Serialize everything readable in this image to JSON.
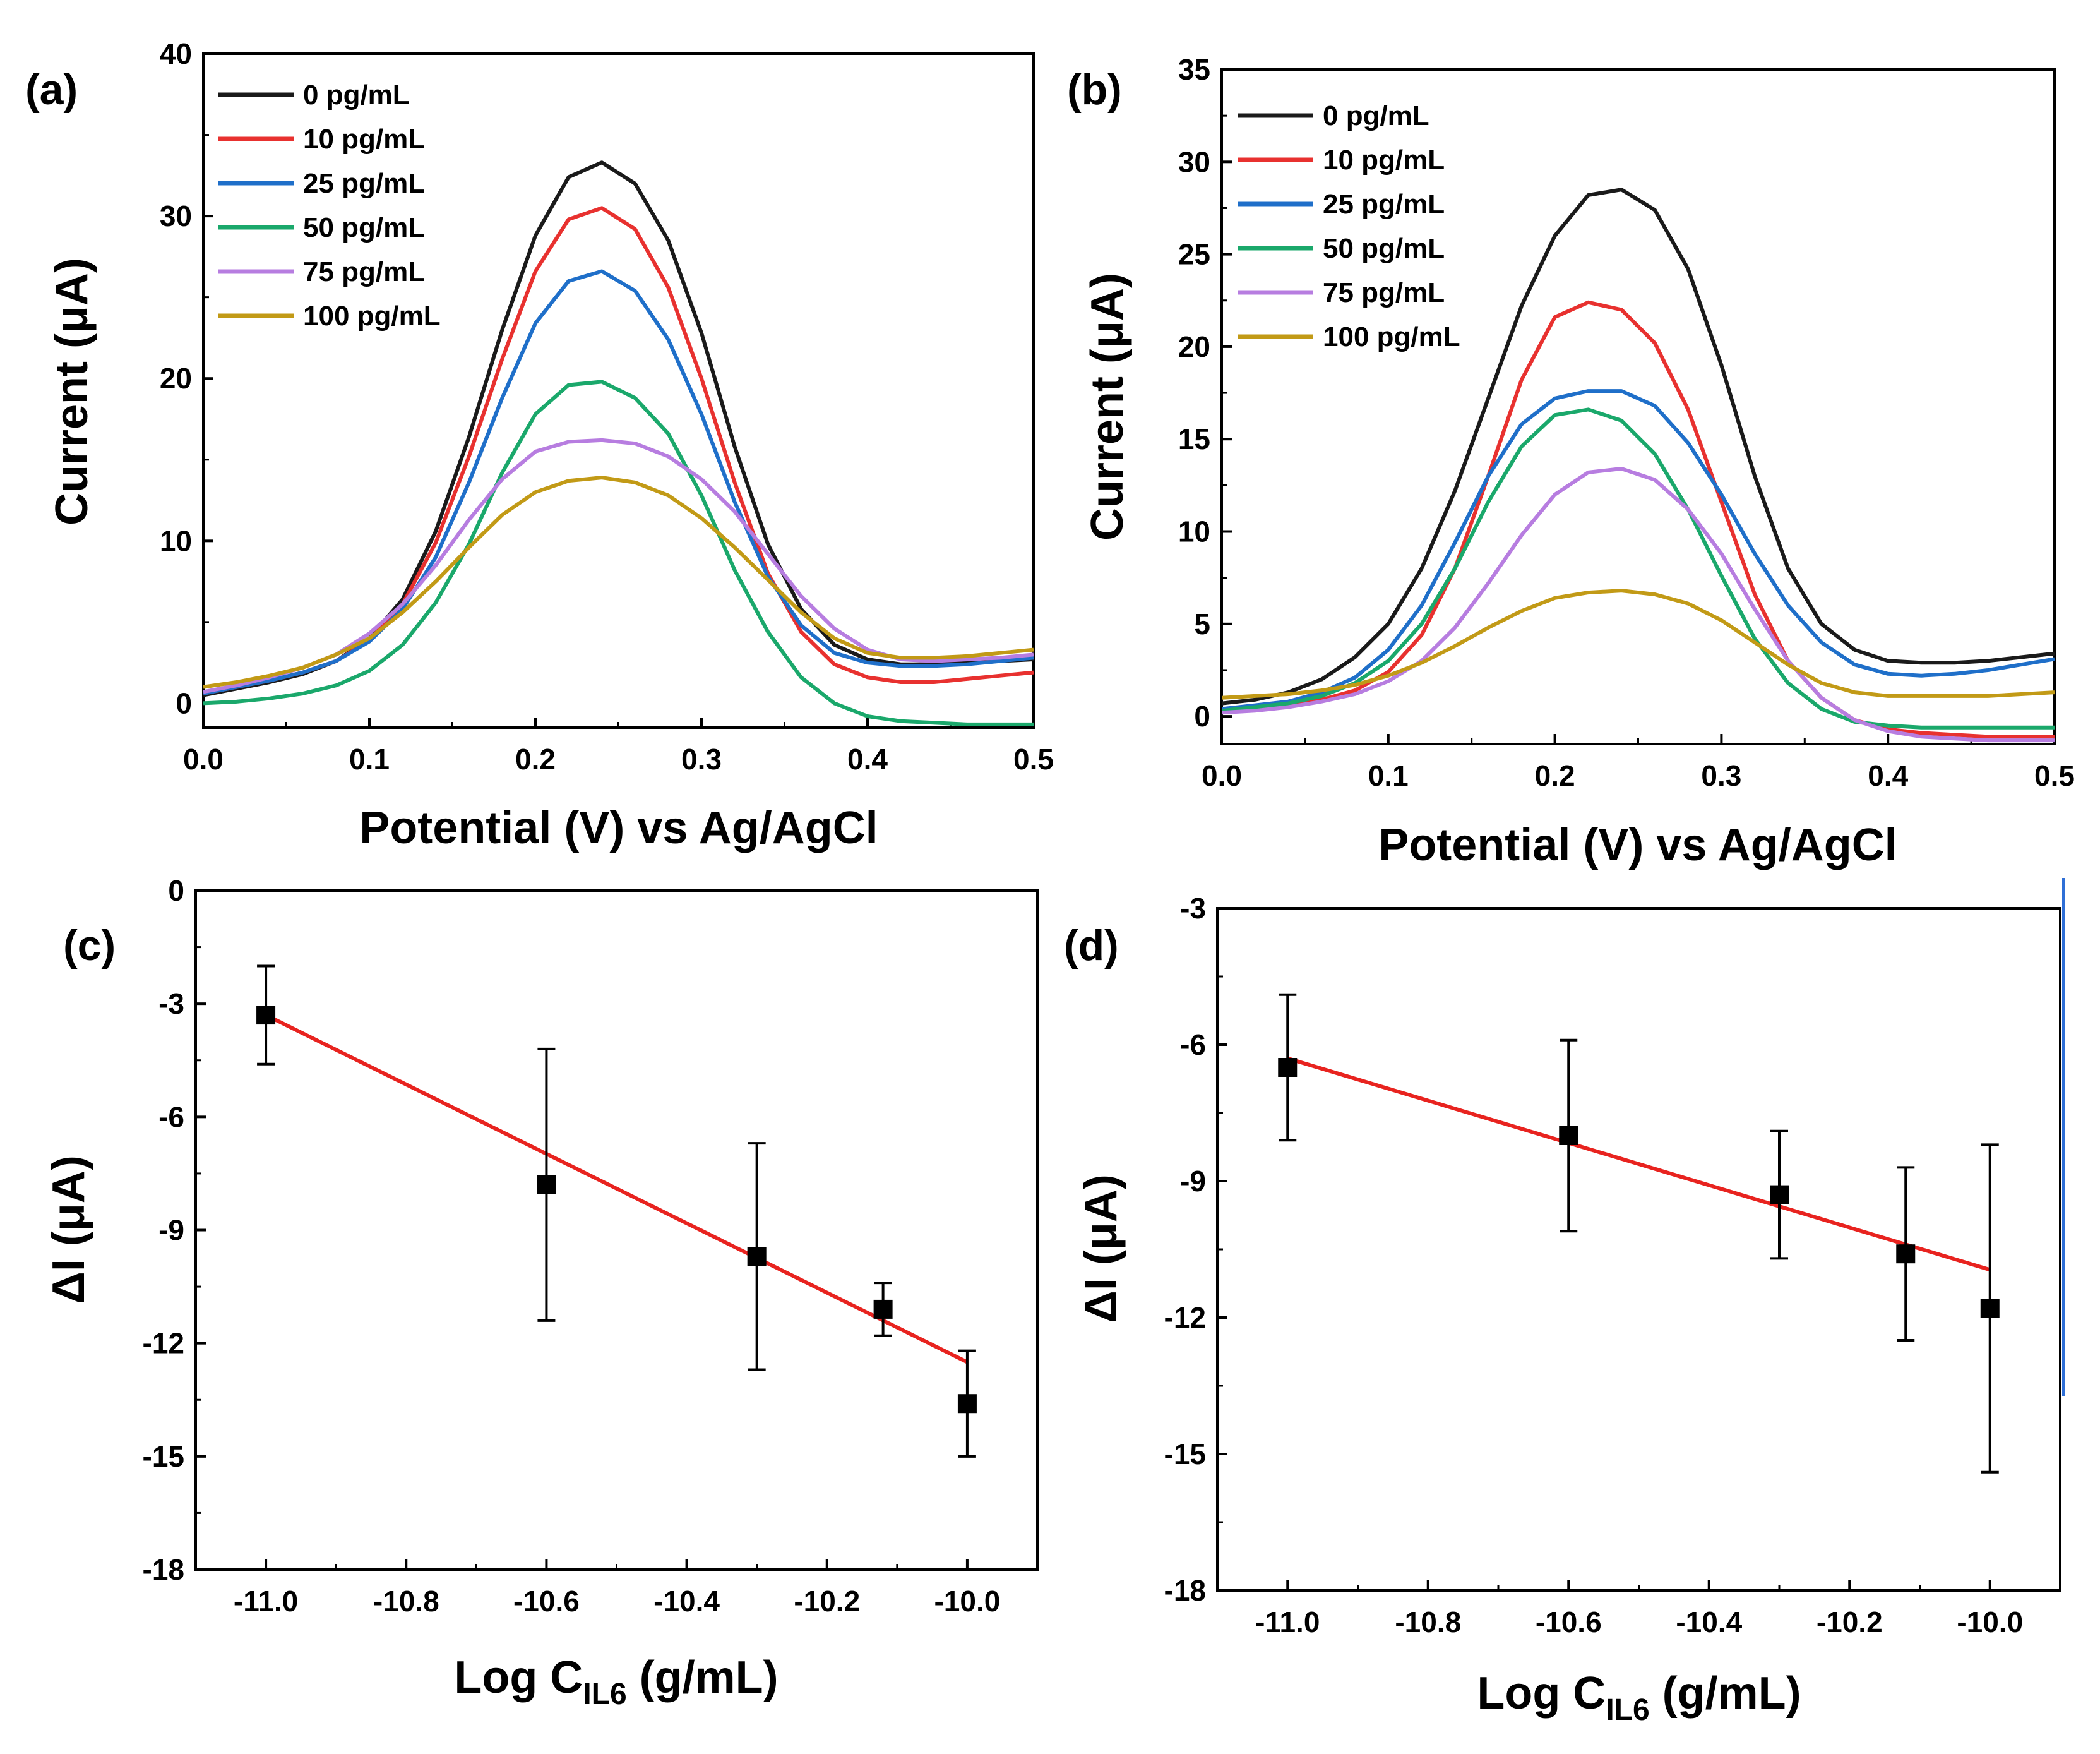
{
  "chart_data": [
    {
      "id": "a",
      "panel_label": "(a)",
      "type": "line",
      "xlabel": "Potential (V) vs Ag/AgCl",
      "ylabel": "Current (μA)",
      "xlim": [
        0.0,
        0.5
      ],
      "ylim": [
        -1.5,
        40
      ],
      "xticks": [
        0.0,
        0.1,
        0.2,
        0.3,
        0.4,
        0.5
      ],
      "yticks": [
        0,
        10,
        20,
        30,
        40
      ],
      "legend_position": "top-left",
      "series": [
        {
          "name": "0 pg/mL",
          "color": "#1a1a1a",
          "x": [
            0.0,
            0.02,
            0.04,
            0.06,
            0.08,
            0.1,
            0.12,
            0.14,
            0.16,
            0.18,
            0.2,
            0.22,
            0.24,
            0.26,
            0.28,
            0.3,
            0.32,
            0.34,
            0.36,
            0.38,
            0.4,
            0.42,
            0.44,
            0.46,
            0.48,
            0.5
          ],
          "values": [
            0.5,
            0.9,
            1.3,
            1.8,
            2.6,
            4.0,
            6.4,
            10.6,
            16.4,
            23.0,
            28.8,
            32.4,
            33.3,
            32.0,
            28.5,
            22.8,
            15.8,
            9.8,
            5.8,
            3.6,
            2.7,
            2.4,
            2.4,
            2.5,
            2.6,
            2.7
          ]
        },
        {
          "name": "10 pg/mL",
          "color": "#e8312f",
          "x": [
            0.0,
            0.02,
            0.04,
            0.06,
            0.08,
            0.1,
            0.12,
            0.14,
            0.16,
            0.18,
            0.2,
            0.22,
            0.24,
            0.26,
            0.28,
            0.3,
            0.32,
            0.34,
            0.36,
            0.38,
            0.4,
            0.42,
            0.44,
            0.46,
            0.48,
            0.5
          ],
          "values": [
            0.6,
            1.0,
            1.4,
            1.9,
            2.6,
            3.9,
            6.1,
            9.9,
            15.2,
            21.2,
            26.6,
            29.8,
            30.5,
            29.2,
            25.6,
            20.0,
            13.6,
            8.0,
            4.4,
            2.4,
            1.6,
            1.3,
            1.3,
            1.5,
            1.7,
            1.9
          ]
        },
        {
          "name": "25 pg/mL",
          "color": "#1f6fc9",
          "x": [
            0.0,
            0.02,
            0.04,
            0.06,
            0.08,
            0.1,
            0.12,
            0.14,
            0.16,
            0.18,
            0.2,
            0.22,
            0.24,
            0.26,
            0.28,
            0.3,
            0.32,
            0.34,
            0.36,
            0.38,
            0.4,
            0.42,
            0.44,
            0.46,
            0.48,
            0.5
          ],
          "values": [
            0.6,
            1.0,
            1.4,
            1.9,
            2.6,
            3.8,
            5.8,
            9.0,
            13.6,
            18.8,
            23.4,
            26.0,
            26.6,
            25.4,
            22.4,
            17.8,
            12.4,
            7.8,
            4.8,
            3.1,
            2.5,
            2.3,
            2.3,
            2.4,
            2.6,
            2.8
          ]
        },
        {
          "name": "50 pg/mL",
          "color": "#1aa86b",
          "x": [
            0.0,
            0.02,
            0.04,
            0.06,
            0.08,
            0.1,
            0.12,
            0.14,
            0.16,
            0.18,
            0.2,
            0.22,
            0.24,
            0.26,
            0.28,
            0.3,
            0.32,
            0.34,
            0.36,
            0.38,
            0.4,
            0.42,
            0.44,
            0.46,
            0.48,
            0.5
          ],
          "values": [
            0.0,
            0.1,
            0.3,
            0.6,
            1.1,
            2.0,
            3.6,
            6.2,
            9.8,
            14.2,
            17.8,
            19.6,
            19.8,
            18.8,
            16.6,
            12.8,
            8.2,
            4.4,
            1.6,
            0.0,
            -0.8,
            -1.1,
            -1.2,
            -1.3,
            -1.3,
            -1.3
          ]
        },
        {
          "name": "75 pg/mL",
          "color": "#b77de0",
          "x": [
            0.0,
            0.02,
            0.04,
            0.06,
            0.08,
            0.1,
            0.12,
            0.14,
            0.16,
            0.18,
            0.2,
            0.22,
            0.24,
            0.26,
            0.28,
            0.3,
            0.32,
            0.34,
            0.36,
            0.38,
            0.4,
            0.42,
            0.44,
            0.46,
            0.48,
            0.5
          ],
          "values": [
            0.7,
            1.1,
            1.6,
            2.2,
            3.0,
            4.3,
            6.1,
            8.5,
            11.3,
            13.8,
            15.5,
            16.1,
            16.2,
            16.0,
            15.2,
            13.8,
            11.8,
            9.2,
            6.6,
            4.6,
            3.3,
            2.7,
            2.6,
            2.7,
            2.8,
            3.0
          ]
        },
        {
          "name": "100 pg/mL",
          "color": "#c29a16",
          "x": [
            0.0,
            0.02,
            0.04,
            0.06,
            0.08,
            0.1,
            0.12,
            0.14,
            0.16,
            0.18,
            0.2,
            0.22,
            0.24,
            0.26,
            0.28,
            0.3,
            0.32,
            0.34,
            0.36,
            0.38,
            0.4,
            0.42,
            0.44,
            0.46,
            0.48,
            0.5
          ],
          "values": [
            1.0,
            1.3,
            1.7,
            2.2,
            3.0,
            4.0,
            5.6,
            7.5,
            9.6,
            11.6,
            13.0,
            13.7,
            13.9,
            13.6,
            12.8,
            11.4,
            9.6,
            7.6,
            5.6,
            4.0,
            3.1,
            2.8,
            2.8,
            2.9,
            3.1,
            3.3
          ]
        }
      ]
    },
    {
      "id": "b",
      "panel_label": "(b)",
      "type": "line",
      "xlabel": "Potential (V) vs Ag/AgCl",
      "ylabel": "Current (μA)",
      "xlim": [
        0.0,
        0.5
      ],
      "ylim": [
        -1.5,
        35
      ],
      "xticks": [
        0.0,
        0.1,
        0.2,
        0.3,
        0.4,
        0.5
      ],
      "yticks": [
        0,
        5,
        10,
        15,
        20,
        25,
        30,
        35
      ],
      "legend_position": "top-left",
      "series": [
        {
          "name": "0 pg/mL",
          "color": "#1a1a1a",
          "x": [
            0.0,
            0.02,
            0.04,
            0.06,
            0.08,
            0.1,
            0.12,
            0.14,
            0.16,
            0.18,
            0.2,
            0.22,
            0.24,
            0.26,
            0.28,
            0.3,
            0.32,
            0.34,
            0.36,
            0.38,
            0.4,
            0.42,
            0.44,
            0.46,
            0.48,
            0.5
          ],
          "values": [
            0.7,
            0.9,
            1.3,
            2.0,
            3.2,
            5.0,
            8.0,
            12.2,
            17.2,
            22.2,
            26.0,
            28.2,
            28.5,
            27.4,
            24.2,
            19.0,
            13.0,
            8.0,
            5.0,
            3.6,
            3.0,
            2.9,
            2.9,
            3.0,
            3.2,
            3.4
          ]
        },
        {
          "name": "10 pg/mL",
          "color": "#e8312f",
          "x": [
            0.0,
            0.02,
            0.04,
            0.06,
            0.08,
            0.1,
            0.12,
            0.14,
            0.16,
            0.18,
            0.2,
            0.22,
            0.24,
            0.26,
            0.28,
            0.3,
            0.32,
            0.34,
            0.36,
            0.38,
            0.4,
            0.42,
            0.44,
            0.46,
            0.48,
            0.5
          ],
          "values": [
            0.3,
            0.4,
            0.6,
            0.9,
            1.4,
            2.4,
            4.4,
            8.0,
            13.0,
            18.2,
            21.6,
            22.4,
            22.0,
            20.2,
            16.6,
            11.6,
            6.6,
            3.0,
            1.0,
            -0.2,
            -0.7,
            -0.9,
            -1.0,
            -1.1,
            -1.1,
            -1.1
          ]
        },
        {
          "name": "25 pg/mL",
          "color": "#1f6fc9",
          "x": [
            0.0,
            0.02,
            0.04,
            0.06,
            0.08,
            0.1,
            0.12,
            0.14,
            0.16,
            0.18,
            0.2,
            0.22,
            0.24,
            0.26,
            0.28,
            0.3,
            0.32,
            0.34,
            0.36,
            0.38,
            0.4,
            0.42,
            0.44,
            0.46,
            0.48,
            0.5
          ],
          "values": [
            0.4,
            0.6,
            0.8,
            1.3,
            2.1,
            3.6,
            6.0,
            9.4,
            13.0,
            15.8,
            17.2,
            17.6,
            17.6,
            16.8,
            14.8,
            12.0,
            8.8,
            6.0,
            4.0,
            2.8,
            2.3,
            2.2,
            2.3,
            2.5,
            2.8,
            3.1
          ]
        },
        {
          "name": "50 pg/mL",
          "color": "#1aa86b",
          "x": [
            0.0,
            0.02,
            0.04,
            0.06,
            0.08,
            0.1,
            0.12,
            0.14,
            0.16,
            0.18,
            0.2,
            0.22,
            0.24,
            0.26,
            0.28,
            0.3,
            0.32,
            0.34,
            0.36,
            0.38,
            0.4,
            0.42,
            0.44,
            0.46,
            0.48,
            0.5
          ],
          "values": [
            0.3,
            0.5,
            0.7,
            1.1,
            1.8,
            3.0,
            5.0,
            8.0,
            11.6,
            14.6,
            16.3,
            16.6,
            16.0,
            14.2,
            11.2,
            7.6,
            4.2,
            1.8,
            0.4,
            -0.3,
            -0.5,
            -0.6,
            -0.6,
            -0.6,
            -0.6,
            -0.6
          ]
        },
        {
          "name": "75 pg/mL",
          "color": "#b77de0",
          "x": [
            0.0,
            0.02,
            0.04,
            0.06,
            0.08,
            0.1,
            0.12,
            0.14,
            0.16,
            0.18,
            0.2,
            0.22,
            0.24,
            0.26,
            0.28,
            0.3,
            0.32,
            0.34,
            0.36,
            0.38,
            0.4,
            0.42,
            0.44,
            0.46,
            0.48,
            0.5
          ],
          "values": [
            0.2,
            0.3,
            0.5,
            0.8,
            1.2,
            1.9,
            3.0,
            4.8,
            7.2,
            9.8,
            12.0,
            13.2,
            13.4,
            12.8,
            11.2,
            8.8,
            5.8,
            3.0,
            1.0,
            -0.2,
            -0.8,
            -1.1,
            -1.2,
            -1.3,
            -1.3,
            -1.3
          ]
        },
        {
          "name": "100 pg/mL",
          "color": "#c29a16",
          "x": [
            0.0,
            0.02,
            0.04,
            0.06,
            0.08,
            0.1,
            0.12,
            0.14,
            0.16,
            0.18,
            0.2,
            0.22,
            0.24,
            0.26,
            0.28,
            0.3,
            0.32,
            0.34,
            0.36,
            0.38,
            0.4,
            0.42,
            0.44,
            0.46,
            0.48,
            0.5
          ],
          "values": [
            1.0,
            1.1,
            1.2,
            1.4,
            1.7,
            2.2,
            2.9,
            3.8,
            4.8,
            5.7,
            6.4,
            6.7,
            6.8,
            6.6,
            6.1,
            5.2,
            4.0,
            2.8,
            1.8,
            1.3,
            1.1,
            1.1,
            1.1,
            1.1,
            1.2,
            1.3
          ]
        }
      ]
    },
    {
      "id": "c",
      "panel_label": "(c)",
      "type": "scatter",
      "xlabel_main": "Log C",
      "xlabel_sub": "IL6",
      "xlabel_tail": " (g/mL)",
      "ylabel": "ΔI (μA)",
      "xlim": [
        -11.1,
        -9.9
      ],
      "ylim": [
        -18,
        0
      ],
      "xticks": [
        -11.0,
        -10.8,
        -10.6,
        -10.4,
        -10.2,
        -10.0
      ],
      "xtick_labels": [
        "-11.0",
        "-10.8",
        "-10.6",
        "-10.4",
        "-10.2",
        "-10.0"
      ],
      "yticks": [
        0,
        -3,
        -6,
        -9,
        -12,
        -15,
        -18
      ],
      "points": [
        {
          "x": -11.0,
          "y": -3.3,
          "err": 1.3
        },
        {
          "x": -10.6,
          "y": -7.8,
          "err": 3.6
        },
        {
          "x": -10.3,
          "y": -9.7,
          "err": 3.0
        },
        {
          "x": -10.12,
          "y": -11.1,
          "err": 0.7
        },
        {
          "x": -10.0,
          "y": -13.6,
          "err": 1.4
        }
      ],
      "fit": {
        "x": [
          -11.0,
          -10.0
        ],
        "y": [
          -3.3,
          -12.5
        ],
        "color": "#e8231f"
      }
    },
    {
      "id": "d",
      "panel_label": "(d)",
      "type": "scatter",
      "xlabel_main": "Log C",
      "xlabel_sub": "IL6",
      "xlabel_tail": " (g/mL)",
      "ylabel": "ΔI (μA)",
      "xlim": [
        -11.1,
        -9.9
      ],
      "ylim": [
        -18,
        -3
      ],
      "xticks": [
        -11.0,
        -10.8,
        -10.6,
        -10.4,
        -10.2,
        -10.0
      ],
      "xtick_labels": [
        "-11.0",
        "-10.8",
        "-10.6",
        "-10.4",
        "-10.2",
        "-10.0"
      ],
      "yticks": [
        -3,
        -6,
        -9,
        -12,
        -15,
        -18
      ],
      "points": [
        {
          "x": -11.0,
          "y": -6.5,
          "err": 1.6
        },
        {
          "x": -10.6,
          "y": -8.0,
          "err": 2.1
        },
        {
          "x": -10.3,
          "y": -9.3,
          "err": 1.4
        },
        {
          "x": -10.12,
          "y": -10.6,
          "err": 1.9
        },
        {
          "x": -10.0,
          "y": -11.8,
          "err": 3.6
        }
      ],
      "fit": {
        "x": [
          -11.0,
          -10.0
        ],
        "y": [
          -6.3,
          -10.95
        ],
        "color": "#e8231f"
      }
    }
  ]
}
